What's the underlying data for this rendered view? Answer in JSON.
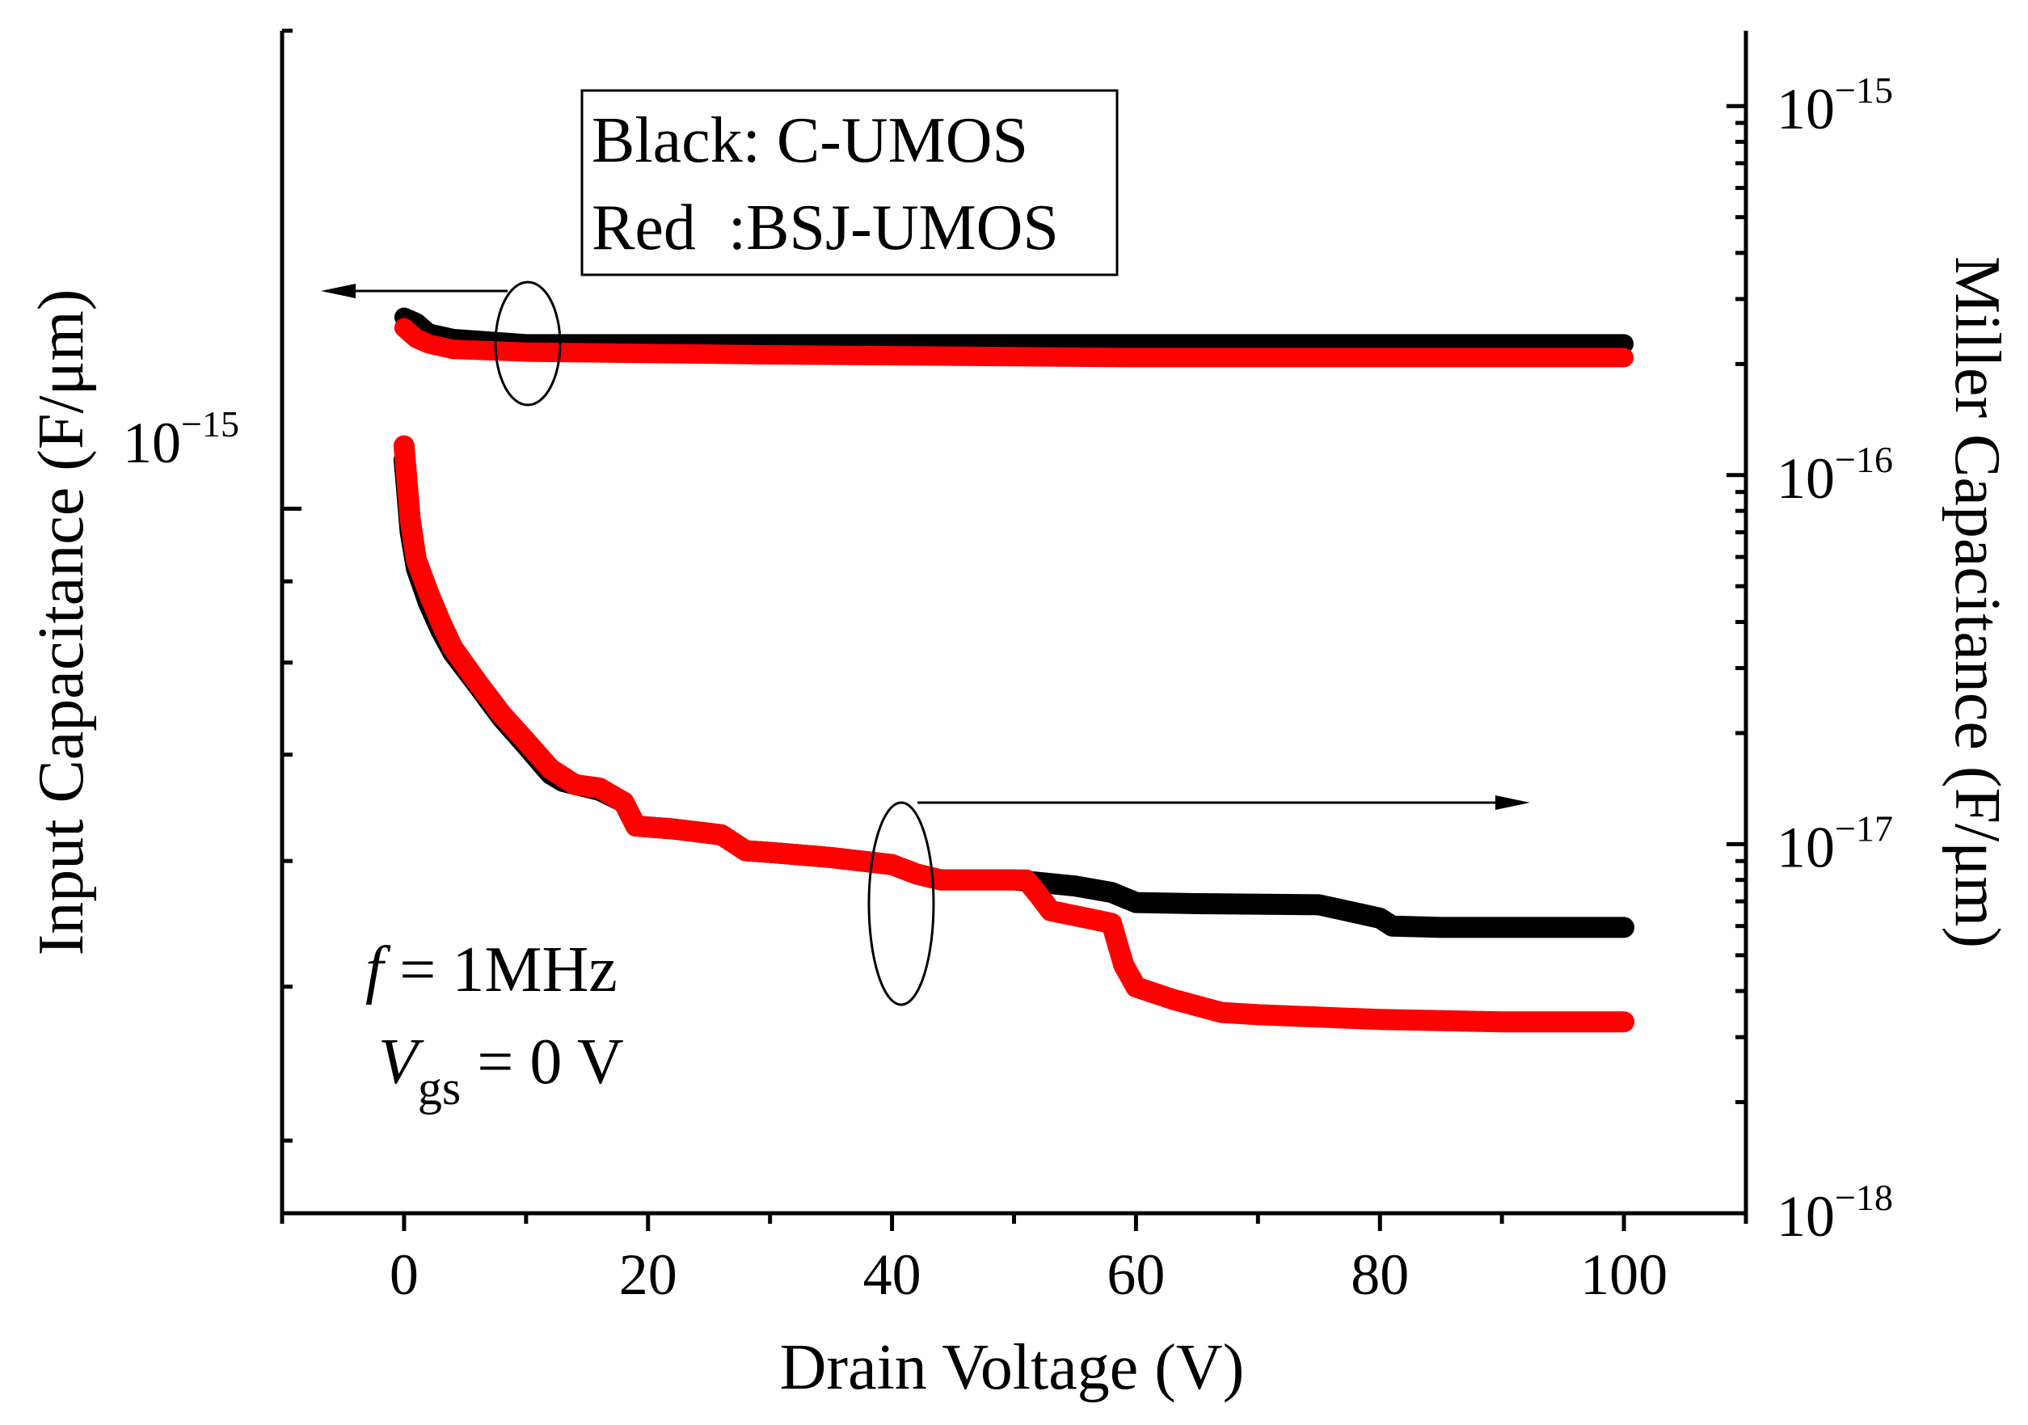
{
  "chart_data": {
    "type": "line",
    "x": {
      "label": "Drain Voltage (V)",
      "range": [
        -10,
        110
      ],
      "ticks": [
        0,
        20,
        40,
        60,
        80,
        100
      ],
      "tick_labels": [
        "0",
        "20",
        "40",
        "60",
        "80",
        "100"
      ]
    },
    "y_left": {
      "label": "Input Capacitance (F/μm)",
      "scale": "log",
      "range": [
        3.6e-16,
        2e-15
      ],
      "tick_label": {
        "base": "10",
        "exp": "−15",
        "value": 1e-15
      },
      "minor_ticks": [
        4e-16,
        5e-16,
        6e-16,
        7e-16,
        8e-16,
        9e-16,
        2e-15
      ]
    },
    "y_right": {
      "label": "Miller Capacitance (F/μm)",
      "scale": "log",
      "range": [
        1e-18,
        1.6e-15
      ],
      "tick_labels": [
        {
          "base": "10",
          "exp": "−15",
          "value": 1e-15
        },
        {
          "base": "10",
          "exp": "−16",
          "value": 1e-16
        },
        {
          "base": "10",
          "exp": "−17",
          "value": 1e-17
        },
        {
          "base": "10",
          "exp": "−18",
          "value": 1e-18
        }
      ]
    },
    "legend": {
      "line1": "Black: C-UMOS",
      "line2": "Red  :BSJ-UMOS",
      "position": "top-left"
    },
    "annotation": {
      "f_symbol": "f",
      "f_rest": " = 1MHz",
      "v_symbol": "V",
      "v_sub": "gs",
      "v_rest": " = 0 V"
    },
    "series": [
      {
        "name": "C-UMOS input capacitance",
        "axis": "left",
        "color": "#000000",
        "points": [
          [
            0,
            1.32e-15
          ],
          [
            1,
            1.31e-15
          ],
          [
            2,
            1.29e-15
          ],
          [
            4,
            1.28e-15
          ],
          [
            10,
            1.27e-15
          ],
          [
            30,
            1.27e-15
          ],
          [
            60,
            1.27e-15
          ],
          [
            100,
            1.27e-15
          ]
        ]
      },
      {
        "name": "BSJ-UMOS input capacitance",
        "axis": "left",
        "color": "#ff0000",
        "points": [
          [
            0,
            1.3e-15
          ],
          [
            1,
            1.28e-15
          ],
          [
            2,
            1.27e-15
          ],
          [
            4,
            1.26e-15
          ],
          [
            10,
            1.255e-15
          ],
          [
            30,
            1.25e-15
          ],
          [
            60,
            1.245e-15
          ],
          [
            100,
            1.245e-15
          ]
        ]
      },
      {
        "name": "C-UMOS Miller capacitance",
        "axis": "right",
        "color": "#000000",
        "points": [
          [
            0,
            1.1e-16
          ],
          [
            0.5,
            7e-17
          ],
          [
            1,
            5.6e-17
          ],
          [
            2,
            4.5e-17
          ],
          [
            3,
            3.8e-17
          ],
          [
            4,
            3.3e-17
          ],
          [
            6,
            2.7e-17
          ],
          [
            8,
            2.2e-17
          ],
          [
            10,
            1.85e-17
          ],
          [
            12,
            1.55e-17
          ],
          [
            13,
            1.48e-17
          ],
          [
            16,
            1.4e-17
          ],
          [
            18,
            1.3e-17
          ],
          [
            19,
            1.12e-17
          ],
          [
            22,
            1.1e-17
          ],
          [
            26,
            1.06e-17
          ],
          [
            28,
            9.6e-18
          ],
          [
            30,
            9.5e-18
          ],
          [
            35,
            9.2e-18
          ],
          [
            40,
            8.8e-18
          ],
          [
            42,
            8.3e-18
          ],
          [
            44,
            8e-18
          ],
          [
            50,
            8e-18
          ],
          [
            55,
            7.7e-18
          ],
          [
            58,
            7.4e-18
          ],
          [
            60,
            6.95e-18
          ],
          [
            65,
            6.9e-18
          ],
          [
            75,
            6.85e-18
          ],
          [
            80,
            6.3e-18
          ],
          [
            81,
            6e-18
          ],
          [
            85,
            5.95e-18
          ],
          [
            100,
            5.95e-18
          ]
        ]
      },
      {
        "name": "BSJ-UMOS Miller capacitance",
        "axis": "right",
        "color": "#ff0000",
        "points": [
          [
            0,
            1.2e-16
          ],
          [
            0.5,
            7.6e-17
          ],
          [
            1,
            5.9e-17
          ],
          [
            2,
            4.8e-17
          ],
          [
            3,
            4e-17
          ],
          [
            4,
            3.4e-17
          ],
          [
            6,
            2.75e-17
          ],
          [
            8,
            2.25e-17
          ],
          [
            10,
            1.9e-17
          ],
          [
            12,
            1.6e-17
          ],
          [
            14,
            1.45e-17
          ],
          [
            16,
            1.42e-17
          ],
          [
            18,
            1.3e-17
          ],
          [
            19,
            1.12e-17
          ],
          [
            22,
            1.1e-17
          ],
          [
            26,
            1.06e-17
          ],
          [
            28,
            9.6e-18
          ],
          [
            30,
            9.5e-18
          ],
          [
            35,
            9.2e-18
          ],
          [
            40,
            8.8e-18
          ],
          [
            42,
            8.3e-18
          ],
          [
            44,
            8e-18
          ],
          [
            51,
            8e-18
          ],
          [
            52,
            7.3e-18
          ],
          [
            53,
            6.6e-18
          ],
          [
            56,
            6.3e-18
          ],
          [
            58,
            6.1e-18
          ],
          [
            59,
            4.7e-18
          ],
          [
            60,
            4.1e-18
          ],
          [
            63,
            3.8e-18
          ],
          [
            67,
            3.5e-18
          ],
          [
            70,
            3.45e-18
          ],
          [
            80,
            3.35e-18
          ],
          [
            90,
            3.3e-18
          ],
          [
            100,
            3.3e-18
          ]
        ]
      }
    ]
  }
}
